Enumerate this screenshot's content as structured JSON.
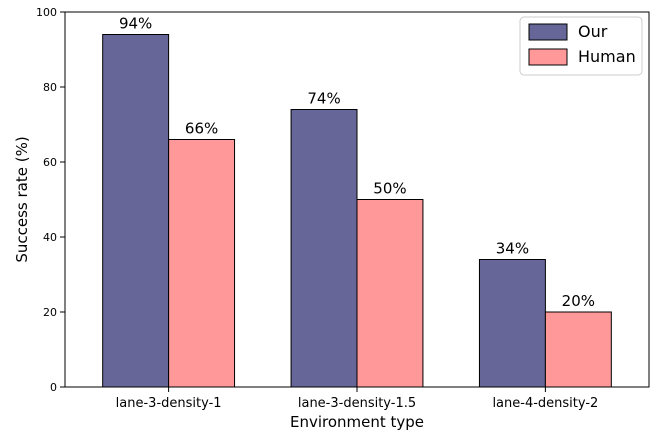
{
  "chart_data": {
    "type": "bar",
    "categories": [
      "lane-3-density-1",
      "lane-3-density-1.5",
      "lane-4-density-2"
    ],
    "series": [
      {
        "name": "Our",
        "values": [
          94,
          74,
          34
        ],
        "labels": [
          "94%",
          "74%",
          "34%"
        ],
        "color": "#666699"
      },
      {
        "name": "Human",
        "values": [
          66,
          50,
          20
        ],
        "labels": [
          "66%",
          "50%",
          "20%"
        ],
        "color": "#ff9999"
      }
    ],
    "xlabel": "Environment type",
    "ylabel": "Success rate (%)",
    "ylim": [
      0,
      100
    ],
    "yticks": [
      0,
      20,
      40,
      60,
      80,
      100
    ],
    "grid": false,
    "legend_position": "top-right"
  }
}
